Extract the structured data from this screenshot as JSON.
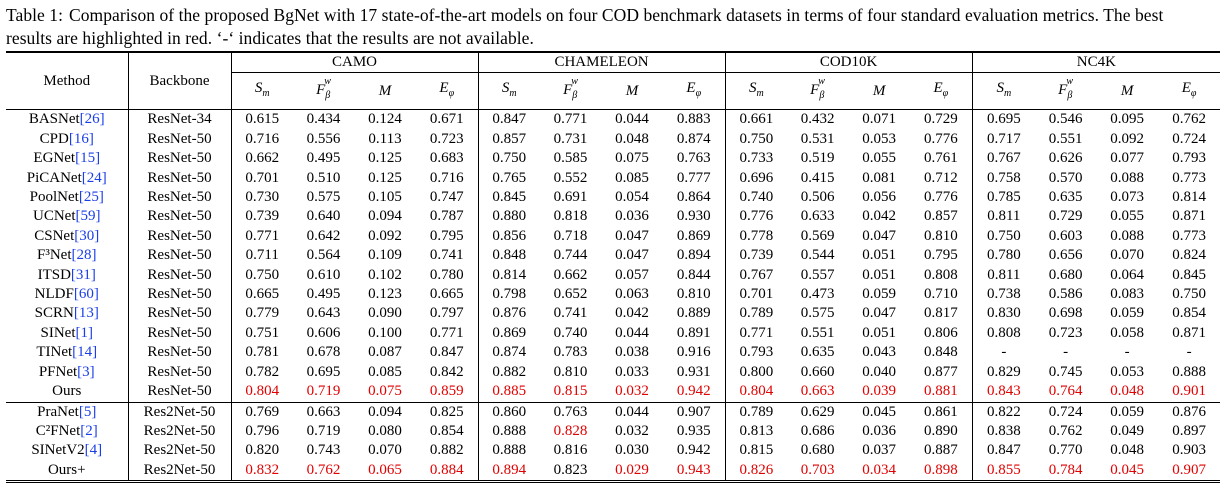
{
  "caption": {
    "label": "Table 1:",
    "text": "Comparison of the proposed BgNet with 17 state-of-the-art models on four COD benchmark datasets in terms of four standard evaluation metrics. The best results are highlighted in red. ‘-‘ indicates that the results are not available."
  },
  "header": {
    "method": "Method",
    "backbone": "Backbone",
    "datasets": [
      "CAMO",
      "CHAMELEON",
      "COD10K",
      "NC4K"
    ]
  },
  "highlight_color": "#e00000",
  "group1": [
    {
      "name": "BASNet",
      "ref": "[26]",
      "backbone": "ResNet-34",
      "values": [
        "0.615",
        "0.434",
        "0.124",
        "0.671",
        "0.847",
        "0.771",
        "0.044",
        "0.883",
        "0.661",
        "0.432",
        "0.071",
        "0.729",
        "0.695",
        "0.546",
        "0.095",
        "0.762"
      ],
      "best": []
    },
    {
      "name": "CPD",
      "ref": "[16]",
      "backbone": "ResNet-50",
      "values": [
        "0.716",
        "0.556",
        "0.113",
        "0.723",
        "0.857",
        "0.731",
        "0.048",
        "0.874",
        "0.750",
        "0.531",
        "0.053",
        "0.776",
        "0.717",
        "0.551",
        "0.092",
        "0.724"
      ],
      "best": []
    },
    {
      "name": "EGNet",
      "ref": "[15]",
      "backbone": "ResNet-50",
      "values": [
        "0.662",
        "0.495",
        "0.125",
        "0.683",
        "0.750",
        "0.585",
        "0.075",
        "0.763",
        "0.733",
        "0.519",
        "0.055",
        "0.761",
        "0.767",
        "0.626",
        "0.077",
        "0.793"
      ],
      "best": []
    },
    {
      "name": "PiCANet",
      "ref": "[24]",
      "backbone": "ResNet-50",
      "values": [
        "0.701",
        "0.510",
        "0.125",
        "0.716",
        "0.765",
        "0.552",
        "0.085",
        "0.777",
        "0.696",
        "0.415",
        "0.081",
        "0.712",
        "0.758",
        "0.570",
        "0.088",
        "0.773"
      ],
      "best": []
    },
    {
      "name": "PoolNet",
      "ref": "[25]",
      "backbone": "ResNet-50",
      "values": [
        "0.730",
        "0.575",
        "0.105",
        "0.747",
        "0.845",
        "0.691",
        "0.054",
        "0.864",
        "0.740",
        "0.506",
        "0.056",
        "0.776",
        "0.785",
        "0.635",
        "0.073",
        "0.814"
      ],
      "best": []
    },
    {
      "name": "UCNet",
      "ref": "[59]",
      "backbone": "ResNet-50",
      "values": [
        "0.739",
        "0.640",
        "0.094",
        "0.787",
        "0.880",
        "0.818",
        "0.036",
        "0.930",
        "0.776",
        "0.633",
        "0.042",
        "0.857",
        "0.811",
        "0.729",
        "0.055",
        "0.871"
      ],
      "best": []
    },
    {
      "name": "CSNet",
      "ref": "[30]",
      "backbone": "ResNet-50",
      "values": [
        "0.771",
        "0.642",
        "0.092",
        "0.795",
        "0.856",
        "0.718",
        "0.047",
        "0.869",
        "0.778",
        "0.569",
        "0.047",
        "0.810",
        "0.750",
        "0.603",
        "0.088",
        "0.773"
      ],
      "best": []
    },
    {
      "name": "F³Net",
      "ref": "[28]",
      "backbone": "ResNet-50",
      "values": [
        "0.711",
        "0.564",
        "0.109",
        "0.741",
        "0.848",
        "0.744",
        "0.047",
        "0.894",
        "0.739",
        "0.544",
        "0.051",
        "0.795",
        "0.780",
        "0.656",
        "0.070",
        "0.824"
      ],
      "best": []
    },
    {
      "name": "ITSD",
      "ref": "[31]",
      "backbone": "ResNet-50",
      "values": [
        "0.750",
        "0.610",
        "0.102",
        "0.780",
        "0.814",
        "0.662",
        "0.057",
        "0.844",
        "0.767",
        "0.557",
        "0.051",
        "0.808",
        "0.811",
        "0.680",
        "0.064",
        "0.845"
      ],
      "best": []
    },
    {
      "name": "NLDF",
      "ref": "[60]",
      "backbone": "ResNet-50",
      "values": [
        "0.665",
        "0.495",
        "0.123",
        "0.665",
        "0.798",
        "0.652",
        "0.063",
        "0.810",
        "0.701",
        "0.473",
        "0.059",
        "0.710",
        "0.738",
        "0.586",
        "0.083",
        "0.750"
      ],
      "best": []
    },
    {
      "name": "SCRN",
      "ref": "[13]",
      "backbone": "ResNet-50",
      "values": [
        "0.779",
        "0.643",
        "0.090",
        "0.797",
        "0.876",
        "0.741",
        "0.042",
        "0.889",
        "0.789",
        "0.575",
        "0.047",
        "0.817",
        "0.830",
        "0.698",
        "0.059",
        "0.854"
      ],
      "best": []
    },
    {
      "name": "SINet",
      "ref": "[1]",
      "backbone": "ResNet-50",
      "values": [
        "0.751",
        "0.606",
        "0.100",
        "0.771",
        "0.869",
        "0.740",
        "0.044",
        "0.891",
        "0.771",
        "0.551",
        "0.051",
        "0.806",
        "0.808",
        "0.723",
        "0.058",
        "0.871"
      ],
      "best": []
    },
    {
      "name": "TINet",
      "ref": "[14]",
      "backbone": "ResNet-50",
      "values": [
        "0.781",
        "0.678",
        "0.087",
        "0.847",
        "0.874",
        "0.783",
        "0.038",
        "0.916",
        "0.793",
        "0.635",
        "0.043",
        "0.848",
        "-",
        "-",
        "-",
        "-"
      ],
      "best": []
    },
    {
      "name": "PFNet",
      "ref": "[3]",
      "backbone": "ResNet-50",
      "values": [
        "0.782",
        "0.695",
        "0.085",
        "0.842",
        "0.882",
        "0.810",
        "0.033",
        "0.931",
        "0.800",
        "0.660",
        "0.040",
        "0.877",
        "0.829",
        "0.745",
        "0.053",
        "0.888"
      ],
      "best": []
    },
    {
      "name": "Ours",
      "ref": "",
      "backbone": "ResNet-50",
      "values": [
        "0.804",
        "0.719",
        "0.075",
        "0.859",
        "0.885",
        "0.815",
        "0.032",
        "0.942",
        "0.804",
        "0.663",
        "0.039",
        "0.881",
        "0.843",
        "0.764",
        "0.048",
        "0.901"
      ],
      "best": [
        0,
        1,
        2,
        3,
        4,
        5,
        6,
        7,
        8,
        9,
        10,
        11,
        12,
        13,
        14,
        15
      ]
    }
  ],
  "group2": [
    {
      "name": "PraNet",
      "ref": "[5]",
      "backbone": "Res2Net-50",
      "values": [
        "0.769",
        "0.663",
        "0.094",
        "0.825",
        "0.860",
        "0.763",
        "0.044",
        "0.907",
        "0.789",
        "0.629",
        "0.045",
        "0.861",
        "0.822",
        "0.724",
        "0.059",
        "0.876"
      ],
      "best": []
    },
    {
      "name": "C²FNet",
      "ref": "[2]",
      "backbone": "Res2Net-50",
      "values": [
        "0.796",
        "0.719",
        "0.080",
        "0.854",
        "0.888",
        "0.828",
        "0.032",
        "0.935",
        "0.813",
        "0.686",
        "0.036",
        "0.890",
        "0.838",
        "0.762",
        "0.049",
        "0.897"
      ],
      "best": [
        5
      ]
    },
    {
      "name": "SINetV2",
      "ref": "[4]",
      "backbone": "Res2Net-50",
      "values": [
        "0.820",
        "0.743",
        "0.070",
        "0.882",
        "0.888",
        "0.816",
        "0.030",
        "0.942",
        "0.815",
        "0.680",
        "0.037",
        "0.887",
        "0.847",
        "0.770",
        "0.048",
        "0.903"
      ],
      "best": []
    },
    {
      "name": "Ours+",
      "ref": "",
      "backbone": "Res2Net-50",
      "values": [
        "0.832",
        "0.762",
        "0.065",
        "0.884",
        "0.894",
        "0.823",
        "0.029",
        "0.943",
        "0.826",
        "0.703",
        "0.034",
        "0.898",
        "0.855",
        "0.784",
        "0.045",
        "0.907"
      ],
      "best": [
        0,
        1,
        2,
        3,
        4,
        6,
        7,
        8,
        9,
        10,
        11,
        12,
        13,
        14,
        15
      ]
    }
  ]
}
